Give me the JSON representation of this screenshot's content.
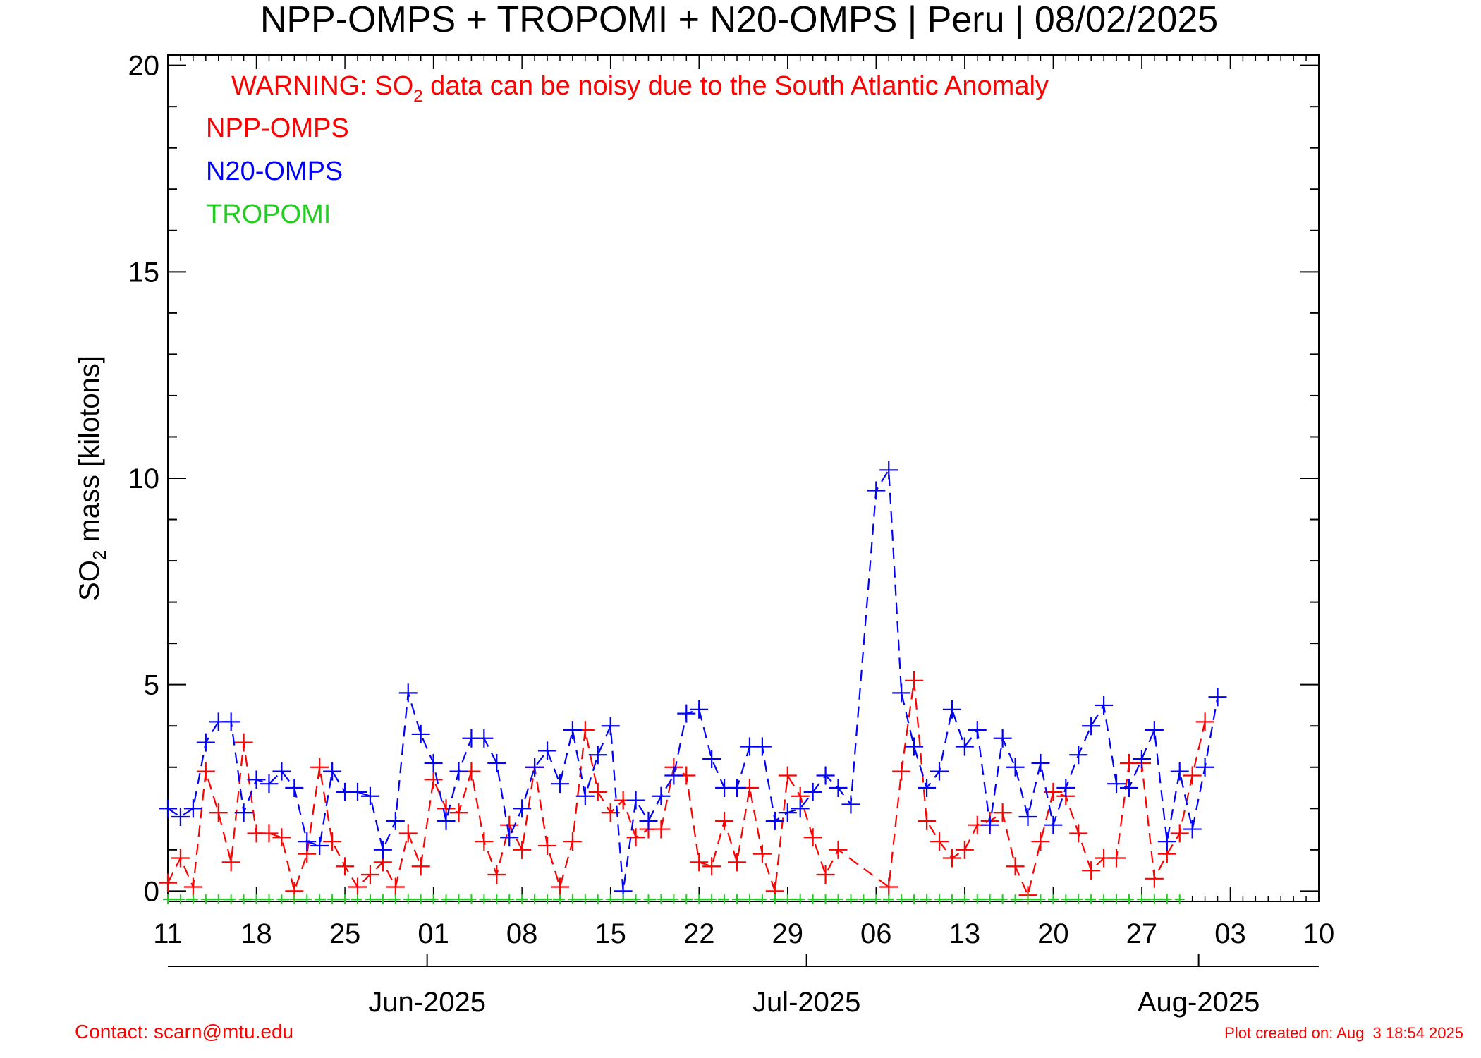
{
  "chart_data": {
    "type": "line",
    "title": "NPP-OMPS + TROPOMI + N20-OMPS | Peru | 08/02/2025",
    "ylabel_prefix": "SO",
    "ylabel_sub": "2",
    "ylabel_suffix": " mass [kilotons]",
    "warning_prefix": "WARNING: SO",
    "warning_sub": "2",
    "warning_suffix": " data can be noisy due to the South Atlantic Anomaly",
    "xlim": [
      0,
      91
    ],
    "ylim": [
      -0.25,
      20.25
    ],
    "y_ticks": [
      0,
      5,
      10,
      15,
      20
    ],
    "y_minor_step": 1,
    "x_ticks": [
      {
        "day": 0,
        "label": "11"
      },
      {
        "day": 7,
        "label": "18"
      },
      {
        "day": 14,
        "label": "25"
      },
      {
        "day": 21,
        "label": "01"
      },
      {
        "day": 28,
        "label": "08"
      },
      {
        "day": 35,
        "label": "15"
      },
      {
        "day": 42,
        "label": "22"
      },
      {
        "day": 49,
        "label": "29"
      },
      {
        "day": 56,
        "label": "06"
      },
      {
        "day": 63,
        "label": "13"
      },
      {
        "day": 70,
        "label": "20"
      },
      {
        "day": 77,
        "label": "27"
      },
      {
        "day": 84,
        "label": "03"
      },
      {
        "day": 91,
        "label": "10"
      }
    ],
    "months": [
      {
        "day": 20.5,
        "label": "Jun-2025"
      },
      {
        "day": 50.5,
        "label": "Jul-2025"
      },
      {
        "day": 81.5,
        "label": "Aug-2025"
      }
    ],
    "series": [
      {
        "name": "NPP-OMPS",
        "color": "#ff0000",
        "points": [
          [
            0,
            0.2
          ],
          [
            1,
            0.8
          ],
          [
            2,
            0.1
          ],
          [
            3,
            2.9
          ],
          [
            4,
            1.9
          ],
          [
            5,
            0.7
          ],
          [
            6,
            3.6
          ],
          [
            7,
            1.4
          ],
          [
            8,
            1.4
          ],
          [
            9,
            1.3
          ],
          [
            10,
            0.0
          ],
          [
            11,
            0.9
          ],
          [
            12,
            3.0
          ],
          [
            13,
            1.2
          ],
          [
            14,
            0.6
          ],
          [
            15,
            0.1
          ],
          [
            16,
            0.4
          ],
          [
            17,
            0.7
          ],
          [
            18,
            0.1
          ],
          [
            19,
            1.4
          ],
          [
            20,
            0.6
          ],
          [
            21,
            2.7
          ],
          [
            22,
            2.0
          ],
          [
            23,
            1.9
          ],
          [
            24,
            2.9
          ],
          [
            25,
            1.2
          ],
          [
            26,
            0.4
          ],
          [
            27,
            1.6
          ],
          [
            28,
            1.0
          ],
          [
            29,
            3.0
          ],
          [
            30,
            1.1
          ],
          [
            31,
            0.1
          ],
          [
            32,
            1.2
          ],
          [
            33,
            3.9
          ],
          [
            34,
            2.4
          ],
          [
            35,
            1.9
          ],
          [
            36,
            2.2
          ],
          [
            37,
            1.3
          ],
          [
            38,
            1.5
          ],
          [
            39,
            1.5
          ],
          [
            40,
            3.0
          ],
          [
            41,
            2.8
          ],
          [
            42,
            0.7
          ],
          [
            43,
            0.6
          ],
          [
            44,
            1.7
          ],
          [
            45,
            0.7
          ],
          [
            46,
            2.5
          ],
          [
            47,
            0.9
          ],
          [
            48,
            0.0
          ],
          [
            49,
            2.8
          ],
          [
            50,
            2.3
          ],
          [
            51,
            1.3
          ],
          [
            52,
            0.4
          ],
          [
            53,
            1.0
          ],
          [
            57,
            0.1
          ],
          [
            58,
            2.9
          ],
          [
            59,
            5.1
          ],
          [
            60,
            1.7
          ],
          [
            61,
            1.2
          ],
          [
            62,
            0.8
          ],
          [
            63,
            1.0
          ],
          [
            64,
            1.6
          ],
          [
            65,
            1.7
          ],
          [
            66,
            1.9
          ],
          [
            67,
            0.6
          ],
          [
            68,
            -0.1
          ],
          [
            69,
            1.2
          ],
          [
            70,
            2.4
          ],
          [
            71,
            2.3
          ],
          [
            72,
            1.4
          ],
          [
            73,
            0.5
          ],
          [
            74,
            0.8
          ],
          [
            75,
            0.8
          ],
          [
            76,
            3.1
          ],
          [
            77,
            3.1
          ],
          [
            78,
            0.3
          ],
          [
            79,
            0.9
          ],
          [
            80,
            1.4
          ],
          [
            81,
            2.8
          ],
          [
            82,
            4.1
          ]
        ]
      },
      {
        "name": "N20-OMPS",
        "color": "#0000ff",
        "points": [
          [
            0,
            2.0
          ],
          [
            1,
            1.8
          ],
          [
            2,
            2.0
          ],
          [
            3,
            3.6
          ],
          [
            4,
            4.1
          ],
          [
            5,
            4.1
          ],
          [
            6,
            1.9
          ],
          [
            7,
            2.7
          ],
          [
            8,
            2.6
          ],
          [
            9,
            2.9
          ],
          [
            10,
            2.5
          ],
          [
            11,
            1.2
          ],
          [
            12,
            1.1
          ],
          [
            13,
            2.9
          ],
          [
            14,
            2.4
          ],
          [
            15,
            2.4
          ],
          [
            16,
            2.3
          ],
          [
            17,
            1.0
          ],
          [
            18,
            1.7
          ],
          [
            19,
            4.8
          ],
          [
            20,
            3.8
          ],
          [
            21,
            3.1
          ],
          [
            22,
            1.7
          ],
          [
            23,
            2.9
          ],
          [
            24,
            3.7
          ],
          [
            25,
            3.7
          ],
          [
            26,
            3.1
          ],
          [
            27,
            1.3
          ],
          [
            28,
            2.0
          ],
          [
            29,
            3.0
          ],
          [
            30,
            3.4
          ],
          [
            31,
            2.6
          ],
          [
            32,
            3.9
          ],
          [
            33,
            2.3
          ],
          [
            34,
            3.3
          ],
          [
            35,
            4.0
          ],
          [
            36,
            0.0
          ],
          [
            37,
            2.2
          ],
          [
            38,
            1.7
          ],
          [
            39,
            2.3
          ],
          [
            40,
            2.8
          ],
          [
            41,
            4.3
          ],
          [
            42,
            4.4
          ],
          [
            43,
            3.2
          ],
          [
            44,
            2.5
          ],
          [
            45,
            2.5
          ],
          [
            46,
            3.5
          ],
          [
            47,
            3.5
          ],
          [
            48,
            1.7
          ],
          [
            49,
            1.9
          ],
          [
            50,
            2.0
          ],
          [
            51,
            2.4
          ],
          [
            52,
            2.8
          ],
          [
            53,
            2.5
          ],
          [
            54,
            2.1
          ],
          [
            56,
            9.7
          ],
          [
            57,
            10.2
          ],
          [
            58,
            4.8
          ],
          [
            59,
            3.5
          ],
          [
            60,
            2.5
          ],
          [
            61,
            2.9
          ],
          [
            62,
            4.4
          ],
          [
            63,
            3.5
          ],
          [
            64,
            3.9
          ],
          [
            65,
            1.6
          ],
          [
            66,
            3.7
          ],
          [
            67,
            3.0
          ],
          [
            68,
            1.8
          ],
          [
            69,
            3.1
          ],
          [
            70,
            1.6
          ],
          [
            71,
            2.5
          ],
          [
            72,
            3.3
          ],
          [
            73,
            4.0
          ],
          [
            74,
            4.5
          ],
          [
            75,
            2.6
          ],
          [
            76,
            2.5
          ],
          [
            77,
            3.2
          ],
          [
            78,
            3.9
          ],
          [
            79,
            1.2
          ],
          [
            80,
            2.9
          ],
          [
            81,
            1.5
          ],
          [
            82,
            3.0
          ],
          [
            83,
            4.7
          ]
        ]
      },
      {
        "name": "TROPOMI",
        "color": "#22cc22",
        "start": 0,
        "end": 80,
        "value": -0.2
      }
    ]
  },
  "footer": {
    "contact": "Contact: scarn@mtu.edu",
    "created": "Plot created on: Aug  3 18:54 2025"
  }
}
